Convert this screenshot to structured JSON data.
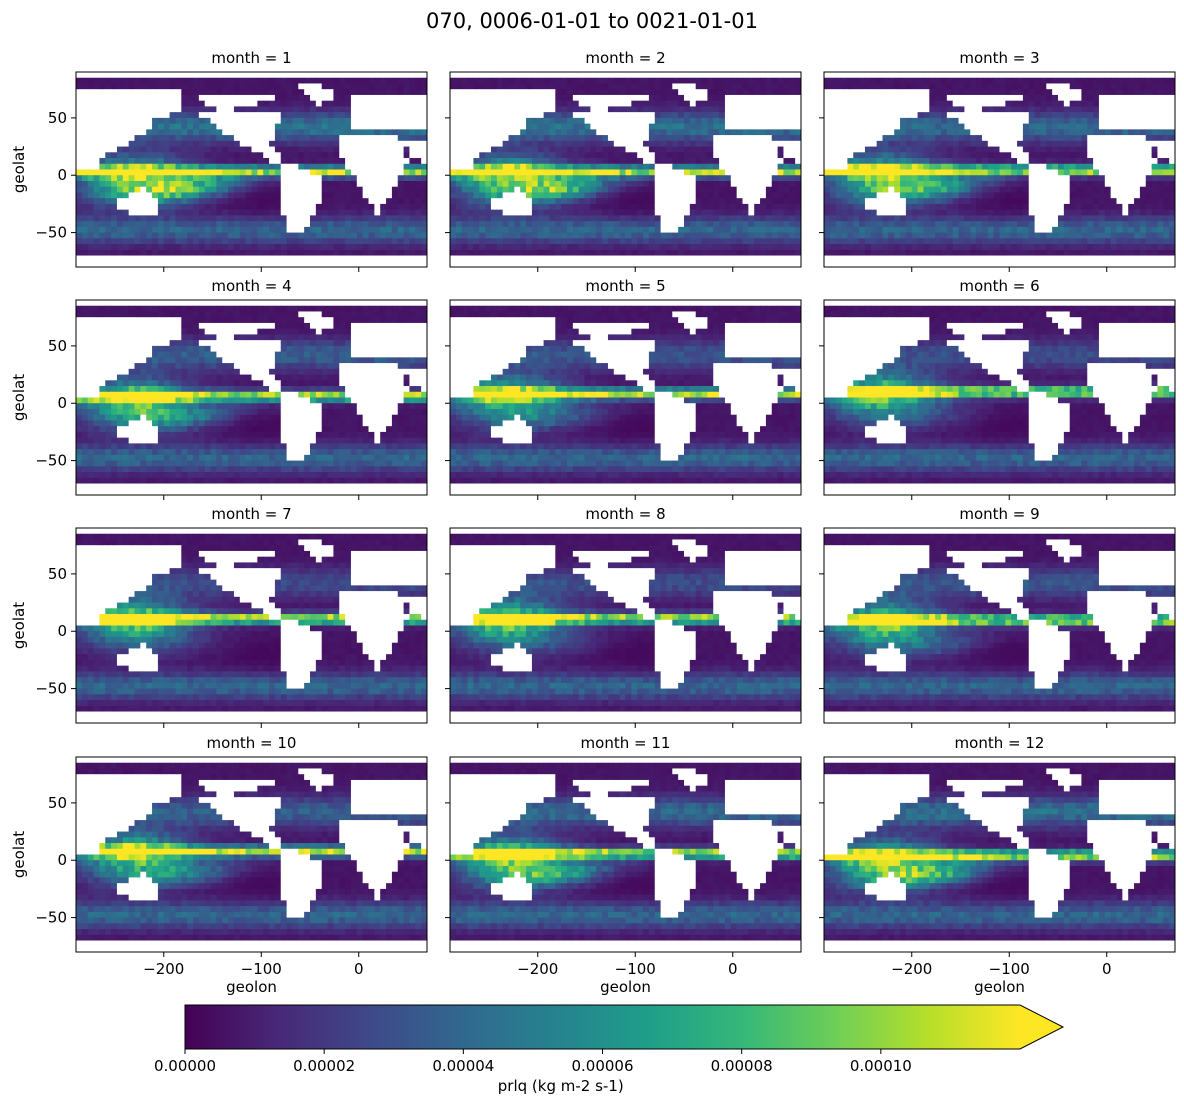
{
  "figure": {
    "title": "070, 0006-01-01 to 0021-01-01"
  },
  "colors": {
    "viridis": [
      "#440154",
      "#482878",
      "#3e4989",
      "#31688e",
      "#26828e",
      "#1f9e89",
      "#35b779",
      "#6ece58",
      "#b5de2b",
      "#fde725"
    ],
    "land": "#ffffff",
    "frame": "#000000"
  },
  "chart_data": {
    "type": "heatmap",
    "variable": "prlq",
    "units": "kg m-2 s-1",
    "xlabel": "geolon",
    "ylabel": "geolat",
    "xlim": [
      -290,
      70
    ],
    "ylim": [
      -80,
      90
    ],
    "x_ticks": [
      -200,
      -100,
      0
    ],
    "x_tick_labels": [
      "−200",
      "−100",
      "0"
    ],
    "y_ticks": [
      50,
      0,
      -50
    ],
    "y_tick_labels": [
      "50",
      "0",
      "−50"
    ],
    "panels": [
      {
        "label": "month = 1"
      },
      {
        "label": "month = 2"
      },
      {
        "label": "month = 3"
      },
      {
        "label": "month = 4"
      },
      {
        "label": "month = 5"
      },
      {
        "label": "month = 6"
      },
      {
        "label": "month = 7"
      },
      {
        "label": "month = 8"
      },
      {
        "label": "month = 9"
      },
      {
        "label": "month = 10"
      },
      {
        "label": "month = 11"
      },
      {
        "label": "month = 12"
      }
    ],
    "colorbar": {
      "label": "prlq (kg m-2 s-1)",
      "colormap": "viridis",
      "range": [
        0,
        0.00012
      ],
      "extend": "max",
      "ticks": [
        0,
        2e-05,
        4e-05,
        6e-05,
        8e-05,
        0.0001
      ],
      "tick_labels": [
        "0.00000",
        "0.00002",
        "0.00004",
        "0.00006",
        "0.00008",
        "0.00010"
      ]
    }
  }
}
